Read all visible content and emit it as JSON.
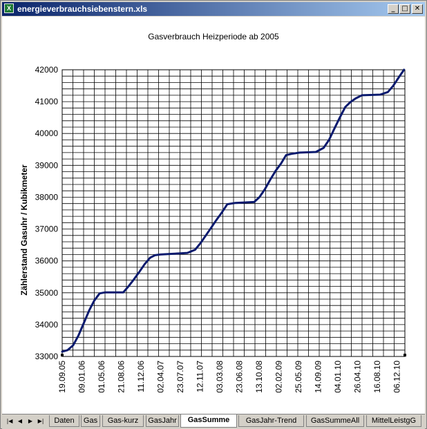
{
  "window": {
    "title": "energieverbrauchsiebenstern.xls",
    "icon": "excel-icon"
  },
  "controls": {
    "minimize": "_",
    "restore": "□",
    "close": "✕"
  },
  "chart_data": {
    "type": "line",
    "title": "Gasverbrauch Heizperiode ab 2005",
    "xlabel": "",
    "ylabel": "Zählerstand Gasuhr / Kubikmeter",
    "ylim": [
      33000,
      42000
    ],
    "xlim": [
      "2005-09-19",
      "2011-01-20"
    ],
    "grid": true,
    "legend": "none",
    "color": "#0a1a6e",
    "y_ticks": [
      "33000",
      "34000",
      "35000",
      "36000",
      "37000",
      "38000",
      "39000",
      "40000",
      "41000",
      "42000"
    ],
    "x_ticks": [
      "19.09.05",
      "09.01.06",
      "01.05.06",
      "21.08.06",
      "11.12.06",
      "02.04.07",
      "23.07.07",
      "12.11.07",
      "03.03.08",
      "23.06.08",
      "13.10.08",
      "02.02.09",
      "25.05.09",
      "14.09.09",
      "04.01.10",
      "26.04.10",
      "16.08.10",
      "06.12.10"
    ],
    "series": [
      {
        "x": [
          "2005-09-19",
          "2005-10-20",
          "2005-11-20",
          "2005-12-20",
          "2006-01-20",
          "2006-02-20",
          "2006-03-20",
          "2006-04-20",
          "2006-05-20",
          "2006-07-01",
          "2006-09-01",
          "2006-10-01",
          "2006-11-01",
          "2006-12-01",
          "2007-01-01",
          "2007-02-01",
          "2007-03-01",
          "2007-04-01",
          "2007-06-01",
          "2007-09-01",
          "2007-10-15",
          "2007-11-15",
          "2007-12-15",
          "2008-01-15",
          "2008-02-15",
          "2008-03-15",
          "2008-04-15",
          "2008-06-01",
          "2008-09-15",
          "2008-10-15",
          "2008-11-15",
          "2008-12-15",
          "2009-01-15",
          "2009-02-15",
          "2009-03-15",
          "2009-04-15",
          "2009-06-01",
          "2009-09-01",
          "2009-10-15",
          "2009-11-15",
          "2009-12-15",
          "2010-01-15",
          "2010-02-15",
          "2010-03-15",
          "2010-04-15",
          "2010-05-20",
          "2010-09-01",
          "2010-10-15",
          "2010-11-15",
          "2010-12-15",
          "2011-01-15"
        ],
        "y": [
          33150,
          33200,
          33350,
          33650,
          34050,
          34450,
          34750,
          34980,
          35010,
          35010,
          35010,
          35200,
          35420,
          35650,
          35900,
          36100,
          36180,
          36200,
          36220,
          36250,
          36350,
          36560,
          36800,
          37050,
          37300,
          37520,
          37780,
          37820,
          37850,
          38000,
          38250,
          38550,
          38830,
          39060,
          39320,
          39360,
          39400,
          39420,
          39550,
          39800,
          40150,
          40500,
          40830,
          40980,
          41100,
          41200,
          41220,
          41300,
          41500,
          41750,
          42000
        ]
      }
    ]
  },
  "sheet_tabs": [
    {
      "label": "Daten",
      "active": false
    },
    {
      "label": "Gas",
      "active": false
    },
    {
      "label": "Gas-kurz",
      "active": false
    },
    {
      "label": "GasJahr",
      "active": false
    },
    {
      "label": "GasSumme",
      "active": true
    },
    {
      "label": "GasJahr-Trend",
      "active": false
    },
    {
      "label": "GasSummeAll",
      "active": false
    },
    {
      "label": "MittelLeistgG",
      "active": false
    }
  ],
  "nav_buttons": [
    "|◀",
    "◀",
    "▶",
    "▶|"
  ]
}
